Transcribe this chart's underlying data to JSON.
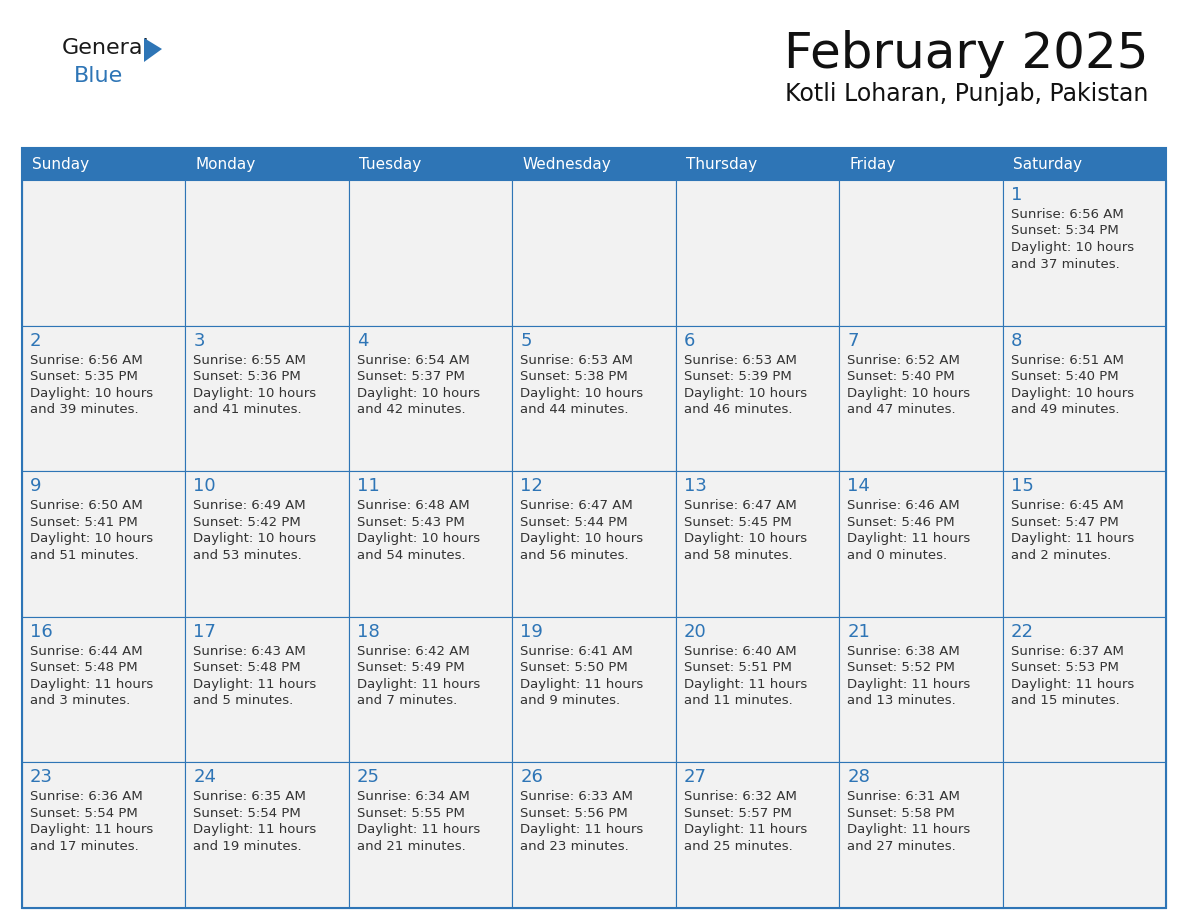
{
  "title": "February 2025",
  "subtitle": "Kotli Loharan, Punjab, Pakistan",
  "header_bg": "#2E75B6",
  "header_text_color": "#FFFFFF",
  "cell_bg": "#F2F2F2",
  "cell_bg_alt": "#FFFFFF",
  "cell_border_color": "#2E75B6",
  "day_number_color": "#2E75B6",
  "cell_text_color": "#333333",
  "days_of_week": [
    "Sunday",
    "Monday",
    "Tuesday",
    "Wednesday",
    "Thursday",
    "Friday",
    "Saturday"
  ],
  "weeks": [
    [
      {
        "day": null,
        "data": null
      },
      {
        "day": null,
        "data": null
      },
      {
        "day": null,
        "data": null
      },
      {
        "day": null,
        "data": null
      },
      {
        "day": null,
        "data": null
      },
      {
        "day": null,
        "data": null
      },
      {
        "day": 1,
        "data": {
          "sunrise": "6:56 AM",
          "sunset": "5:34 PM",
          "daylight_h": "10 hours",
          "daylight_m": "and 37 minutes."
        }
      }
    ],
    [
      {
        "day": 2,
        "data": {
          "sunrise": "6:56 AM",
          "sunset": "5:35 PM",
          "daylight_h": "10 hours",
          "daylight_m": "and 39 minutes."
        }
      },
      {
        "day": 3,
        "data": {
          "sunrise": "6:55 AM",
          "sunset": "5:36 PM",
          "daylight_h": "10 hours",
          "daylight_m": "and 41 minutes."
        }
      },
      {
        "day": 4,
        "data": {
          "sunrise": "6:54 AM",
          "sunset": "5:37 PM",
          "daylight_h": "10 hours",
          "daylight_m": "and 42 minutes."
        }
      },
      {
        "day": 5,
        "data": {
          "sunrise": "6:53 AM",
          "sunset": "5:38 PM",
          "daylight_h": "10 hours",
          "daylight_m": "and 44 minutes."
        }
      },
      {
        "day": 6,
        "data": {
          "sunrise": "6:53 AM",
          "sunset": "5:39 PM",
          "daylight_h": "10 hours",
          "daylight_m": "and 46 minutes."
        }
      },
      {
        "day": 7,
        "data": {
          "sunrise": "6:52 AM",
          "sunset": "5:40 PM",
          "daylight_h": "10 hours",
          "daylight_m": "and 47 minutes."
        }
      },
      {
        "day": 8,
        "data": {
          "sunrise": "6:51 AM",
          "sunset": "5:40 PM",
          "daylight_h": "10 hours",
          "daylight_m": "and 49 minutes."
        }
      }
    ],
    [
      {
        "day": 9,
        "data": {
          "sunrise": "6:50 AM",
          "sunset": "5:41 PM",
          "daylight_h": "10 hours",
          "daylight_m": "and 51 minutes."
        }
      },
      {
        "day": 10,
        "data": {
          "sunrise": "6:49 AM",
          "sunset": "5:42 PM",
          "daylight_h": "10 hours",
          "daylight_m": "and 53 minutes."
        }
      },
      {
        "day": 11,
        "data": {
          "sunrise": "6:48 AM",
          "sunset": "5:43 PM",
          "daylight_h": "10 hours",
          "daylight_m": "and 54 minutes."
        }
      },
      {
        "day": 12,
        "data": {
          "sunrise": "6:47 AM",
          "sunset": "5:44 PM",
          "daylight_h": "10 hours",
          "daylight_m": "and 56 minutes."
        }
      },
      {
        "day": 13,
        "data": {
          "sunrise": "6:47 AM",
          "sunset": "5:45 PM",
          "daylight_h": "10 hours",
          "daylight_m": "and 58 minutes."
        }
      },
      {
        "day": 14,
        "data": {
          "sunrise": "6:46 AM",
          "sunset": "5:46 PM",
          "daylight_h": "11 hours",
          "daylight_m": "and 0 minutes."
        }
      },
      {
        "day": 15,
        "data": {
          "sunrise": "6:45 AM",
          "sunset": "5:47 PM",
          "daylight_h": "11 hours",
          "daylight_m": "and 2 minutes."
        }
      }
    ],
    [
      {
        "day": 16,
        "data": {
          "sunrise": "6:44 AM",
          "sunset": "5:48 PM",
          "daylight_h": "11 hours",
          "daylight_m": "and 3 minutes."
        }
      },
      {
        "day": 17,
        "data": {
          "sunrise": "6:43 AM",
          "sunset": "5:48 PM",
          "daylight_h": "11 hours",
          "daylight_m": "and 5 minutes."
        }
      },
      {
        "day": 18,
        "data": {
          "sunrise": "6:42 AM",
          "sunset": "5:49 PM",
          "daylight_h": "11 hours",
          "daylight_m": "and 7 minutes."
        }
      },
      {
        "day": 19,
        "data": {
          "sunrise": "6:41 AM",
          "sunset": "5:50 PM",
          "daylight_h": "11 hours",
          "daylight_m": "and 9 minutes."
        }
      },
      {
        "day": 20,
        "data": {
          "sunrise": "6:40 AM",
          "sunset": "5:51 PM",
          "daylight_h": "11 hours",
          "daylight_m": "and 11 minutes."
        }
      },
      {
        "day": 21,
        "data": {
          "sunrise": "6:38 AM",
          "sunset": "5:52 PM",
          "daylight_h": "11 hours",
          "daylight_m": "and 13 minutes."
        }
      },
      {
        "day": 22,
        "data": {
          "sunrise": "6:37 AM",
          "sunset": "5:53 PM",
          "daylight_h": "11 hours",
          "daylight_m": "and 15 minutes."
        }
      }
    ],
    [
      {
        "day": 23,
        "data": {
          "sunrise": "6:36 AM",
          "sunset": "5:54 PM",
          "daylight_h": "11 hours",
          "daylight_m": "and 17 minutes."
        }
      },
      {
        "day": 24,
        "data": {
          "sunrise": "6:35 AM",
          "sunset": "5:54 PM",
          "daylight_h": "11 hours",
          "daylight_m": "and 19 minutes."
        }
      },
      {
        "day": 25,
        "data": {
          "sunrise": "6:34 AM",
          "sunset": "5:55 PM",
          "daylight_h": "11 hours",
          "daylight_m": "and 21 minutes."
        }
      },
      {
        "day": 26,
        "data": {
          "sunrise": "6:33 AM",
          "sunset": "5:56 PM",
          "daylight_h": "11 hours",
          "daylight_m": "and 23 minutes."
        }
      },
      {
        "day": 27,
        "data": {
          "sunrise": "6:32 AM",
          "sunset": "5:57 PM",
          "daylight_h": "11 hours",
          "daylight_m": "and 25 minutes."
        }
      },
      {
        "day": 28,
        "data": {
          "sunrise": "6:31 AM",
          "sunset": "5:58 PM",
          "daylight_h": "11 hours",
          "daylight_m": "and 27 minutes."
        }
      },
      {
        "day": null,
        "data": null
      }
    ]
  ],
  "logo_text1": "General",
  "logo_text2": "Blue",
  "logo_text1_color": "#1a1a1a",
  "logo_text2_color": "#2E75B6",
  "logo_triangle_color": "#2E75B6"
}
